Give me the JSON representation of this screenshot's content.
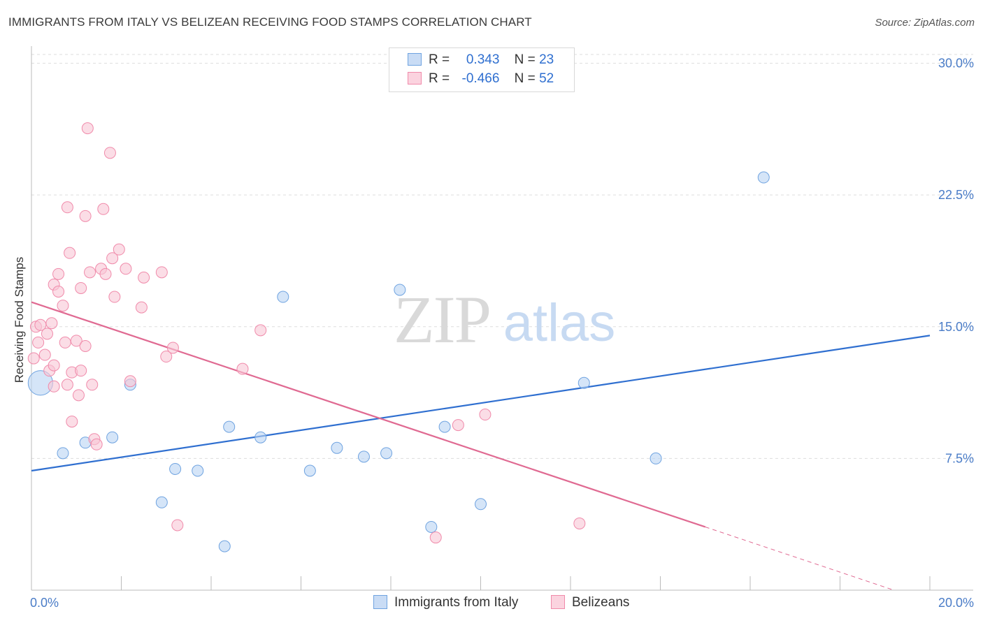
{
  "header": {
    "title": "IMMIGRANTS FROM ITALY VS BELIZEAN RECEIVING FOOD STAMPS CORRELATION CHART",
    "source": "Source: ZipAtlas.com"
  },
  "watermark": {
    "zip": "ZIP",
    "atlas": "atlas"
  },
  "legend": {
    "rows": [
      {
        "r_label": "R =",
        "r_value": "0.343",
        "n_label": "N =",
        "n_value": "23",
        "color": "#a8c8f0"
      },
      {
        "r_label": "R =",
        "r_value": "-0.466",
        "n_label": "N =",
        "n_value": "52",
        "color": "#f7b6c8"
      }
    ]
  },
  "chart_data": {
    "type": "scatter",
    "xlabel": "",
    "ylabel": "Receiving Food Stamps",
    "xlim": [
      0,
      20
    ],
    "ylim": [
      0,
      30.5
    ],
    "x_tick_labels": [
      "0.0%",
      "20.0%"
    ],
    "y_ticks": [
      7.5,
      15.0,
      22.5,
      30.0
    ],
    "y_tick_labels": [
      "7.5%",
      "15.0%",
      "22.5%",
      "30.0%"
    ],
    "grid": true,
    "legend_position": "top-center",
    "series": [
      {
        "name": "Immigrants from Italy",
        "color": "#6fa3e0",
        "fill": "#b9d3f3",
        "points": [
          [
            0.2,
            11.8,
            2.2
          ],
          [
            0.7,
            7.8,
            1
          ],
          [
            1.2,
            8.4,
            1
          ],
          [
            1.8,
            8.7,
            1
          ],
          [
            2.2,
            11.7,
            1
          ],
          [
            2.9,
            5.0,
            1
          ],
          [
            3.2,
            6.9,
            1
          ],
          [
            3.7,
            6.8,
            1
          ],
          [
            4.3,
            2.5,
            1
          ],
          [
            4.4,
            9.3,
            1
          ],
          [
            5.1,
            8.7,
            1
          ],
          [
            5.6,
            16.7,
            1
          ],
          [
            6.2,
            6.8,
            1
          ],
          [
            6.8,
            8.1,
            1
          ],
          [
            7.4,
            7.6,
            1
          ],
          [
            7.9,
            7.8,
            1
          ],
          [
            8.2,
            17.1,
            1
          ],
          [
            8.9,
            3.6,
            1
          ],
          [
            9.2,
            9.3,
            1
          ],
          [
            10.0,
            4.9,
            1
          ],
          [
            12.3,
            11.8,
            1
          ],
          [
            13.9,
            7.5,
            1
          ],
          [
            16.3,
            23.5,
            1
          ]
        ],
        "trend": {
          "x0": 0,
          "y0": 6.8,
          "x1": 20,
          "y1": 14.5,
          "color": "#2f6fd0"
        }
      },
      {
        "name": "Belizeans",
        "color": "#f08aaa",
        "fill": "#f9c6d5",
        "points": [
          [
            0.05,
            13.2,
            1
          ],
          [
            0.1,
            15.0,
            1
          ],
          [
            0.15,
            14.1,
            1
          ],
          [
            0.2,
            15.1,
            1
          ],
          [
            0.3,
            13.4,
            1
          ],
          [
            0.35,
            14.6,
            1
          ],
          [
            0.4,
            12.5,
            1
          ],
          [
            0.45,
            15.2,
            1
          ],
          [
            0.5,
            17.4,
            1
          ],
          [
            0.5,
            12.8,
            1
          ],
          [
            0.5,
            11.6,
            1
          ],
          [
            0.6,
            17.0,
            1
          ],
          [
            0.6,
            18.0,
            1
          ],
          [
            0.7,
            16.2,
            1
          ],
          [
            0.75,
            14.1,
            1
          ],
          [
            0.8,
            11.7,
            1
          ],
          [
            0.8,
            21.8,
            1
          ],
          [
            0.85,
            19.2,
            1
          ],
          [
            0.9,
            12.4,
            1
          ],
          [
            0.9,
            9.6,
            1
          ],
          [
            1.0,
            14.2,
            1
          ],
          [
            1.05,
            11.1,
            1
          ],
          [
            1.1,
            12.5,
            1
          ],
          [
            1.1,
            17.2,
            1
          ],
          [
            1.2,
            21.3,
            1
          ],
          [
            1.2,
            13.9,
            1
          ],
          [
            1.25,
            26.3,
            1
          ],
          [
            1.3,
            18.1,
            1
          ],
          [
            1.35,
            11.7,
            1
          ],
          [
            1.4,
            8.6,
            1
          ],
          [
            1.45,
            8.3,
            1
          ],
          [
            1.55,
            18.3,
            1
          ],
          [
            1.6,
            21.7,
            1
          ],
          [
            1.65,
            18.0,
            1
          ],
          [
            1.75,
            24.9,
            1
          ],
          [
            1.8,
            18.9,
            1
          ],
          [
            1.85,
            16.7,
            1
          ],
          [
            1.95,
            19.4,
            1
          ],
          [
            2.1,
            18.3,
            1
          ],
          [
            2.2,
            11.9,
            1
          ],
          [
            2.45,
            16.1,
            1
          ],
          [
            2.5,
            17.8,
            1
          ],
          [
            2.9,
            18.1,
            1
          ],
          [
            3.0,
            13.3,
            1
          ],
          [
            3.15,
            13.8,
            1
          ],
          [
            3.25,
            3.7,
            1
          ],
          [
            4.7,
            12.6,
            1
          ],
          [
            5.1,
            14.8,
            1
          ],
          [
            9.0,
            3.0,
            1
          ],
          [
            9.5,
            9.4,
            1
          ],
          [
            10.1,
            10.0,
            1
          ],
          [
            12.2,
            3.8,
            1
          ]
        ],
        "trend": {
          "x0": 0,
          "y0": 16.4,
          "x1": 15.0,
          "y1": 3.6,
          "dash_to_x": 19.2,
          "dash_to_y": 0.0,
          "color": "#e06a92"
        }
      }
    ]
  }
}
